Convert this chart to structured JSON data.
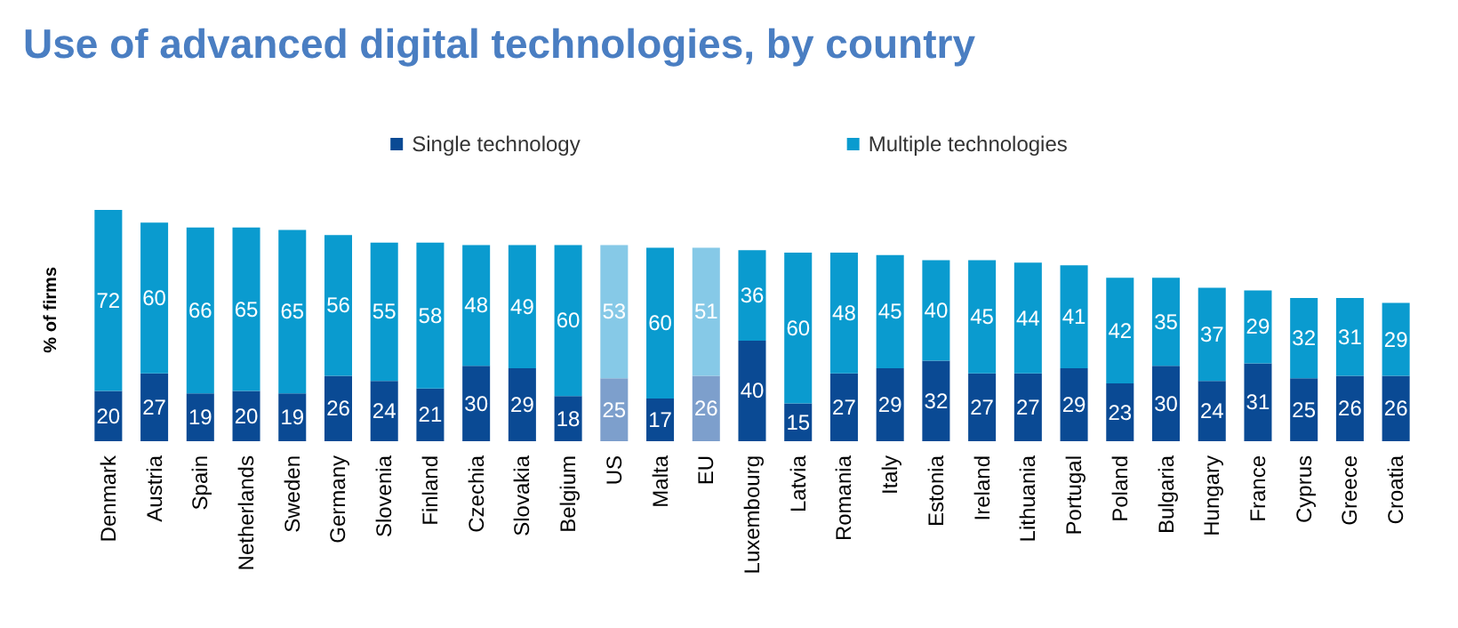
{
  "chart_data": {
    "type": "bar",
    "title": "Use of advanced digital technologies, by country",
    "ylabel": "% of firms",
    "stacked": true,
    "data_labels": true,
    "legend": "top",
    "tick_labels": "x",
    "categories": [
      "Denmark",
      "Austria",
      "Spain",
      "Netherlands",
      "Sweden",
      "Germany",
      "Slovenia",
      "Finland",
      "Czechia",
      "Slovakia",
      "Belgium",
      "US",
      "Malta",
      "EU",
      "Luxembourg",
      "Latvia",
      "Romania",
      "Italy",
      "Estonia",
      "Ireland",
      "Lithuania",
      "Portugal",
      "Poland",
      "Bulgaria",
      "Hungary",
      "France",
      "Cyprus",
      "Greece",
      "Croatia"
    ],
    "series": [
      {
        "name": "Single technology",
        "color": "#0a4a94",
        "colors": [
          "#0a4a94",
          "#0a4a94",
          "#0a4a94",
          "#0a4a94",
          "#0a4a94",
          "#0a4a94",
          "#0a4a94",
          "#0a4a94",
          "#0a4a94",
          "#0a4a94",
          "#0a4a94",
          "#7d9fcc",
          "#0a4a94",
          "#7d9fcc",
          "#0a4a94",
          "#0a4a94",
          "#0a4a94",
          "#0a4a94",
          "#0a4a94",
          "#0a4a94",
          "#0a4a94",
          "#0a4a94",
          "#0a4a94",
          "#0a4a94",
          "#0a4a94",
          "#0a4a94",
          "#0a4a94",
          "#0a4a94",
          "#0a4a94"
        ],
        "values": [
          20,
          27,
          19,
          20,
          19,
          26,
          24,
          21,
          30,
          29,
          18,
          25,
          17,
          26,
          40,
          15,
          27,
          29,
          32,
          27,
          27,
          29,
          23,
          30,
          24,
          31,
          25,
          26,
          26
        ]
      },
      {
        "name": "Multiple technologies",
        "color": "#0a9bcf",
        "colors": [
          "#0a9bcf",
          "#0a9bcf",
          "#0a9bcf",
          "#0a9bcf",
          "#0a9bcf",
          "#0a9bcf",
          "#0a9bcf",
          "#0a9bcf",
          "#0a9bcf",
          "#0a9bcf",
          "#0a9bcf",
          "#86c9e7",
          "#0a9bcf",
          "#86c9e7",
          "#0a9bcf",
          "#0a9bcf",
          "#0a9bcf",
          "#0a9bcf",
          "#0a9bcf",
          "#0a9bcf",
          "#0a9bcf",
          "#0a9bcf",
          "#0a9bcf",
          "#0a9bcf",
          "#0a9bcf",
          "#0a9bcf",
          "#0a9bcf",
          "#0a9bcf",
          "#0a9bcf"
        ],
        "values": [
          72,
          60,
          66,
          65,
          65,
          56,
          55,
          58,
          48,
          49,
          60,
          53,
          60,
          51,
          36,
          60,
          48,
          45,
          40,
          45,
          44,
          41,
          42,
          35,
          37,
          29,
          32,
          31,
          29
        ]
      }
    ]
  }
}
